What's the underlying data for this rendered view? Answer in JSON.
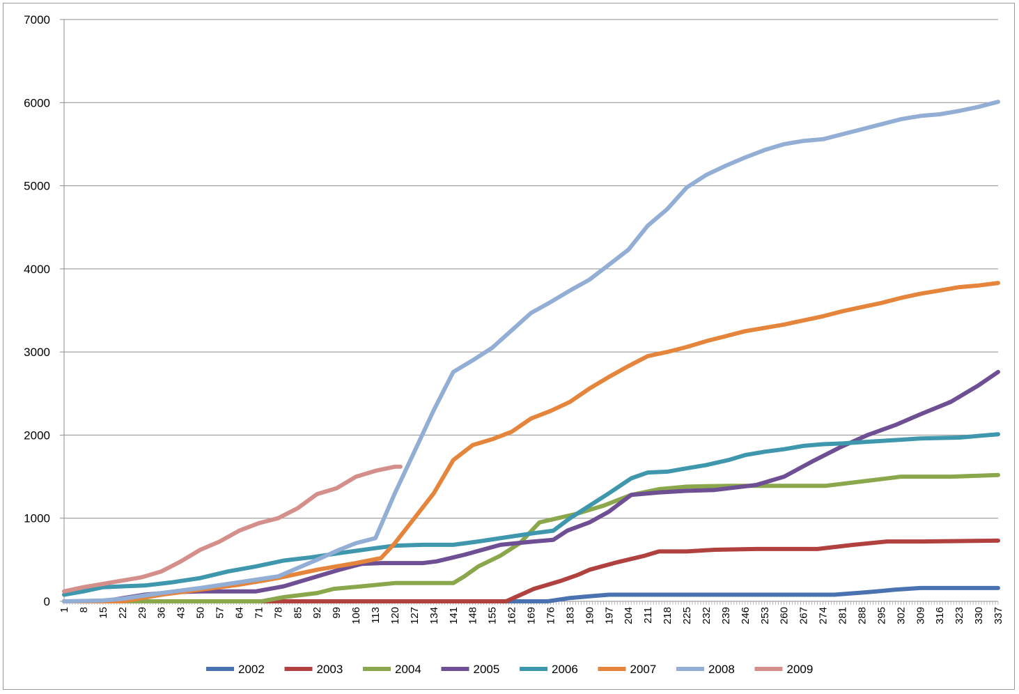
{
  "chart_data": {
    "type": "line",
    "title": "",
    "xlabel": "",
    "ylabel": "",
    "xlim": [
      1,
      337
    ],
    "ylim": [
      0,
      7000
    ],
    "y_ticks": [
      0,
      1000,
      2000,
      3000,
      4000,
      5000,
      6000,
      7000
    ],
    "x_tick_labels": [
      "1",
      "8",
      "15",
      "22",
      "29",
      "36",
      "43",
      "50",
      "57",
      "64",
      "71",
      "78",
      "85",
      "92",
      "99",
      "106",
      "113",
      "120",
      "127",
      "134",
      "141",
      "148",
      "155",
      "162",
      "169",
      "176",
      "183",
      "190",
      "197",
      "204",
      "211",
      "218",
      "225",
      "232",
      "239",
      "246",
      "253",
      "260",
      "267",
      "274",
      "281",
      "288",
      "295",
      "302",
      "309",
      "316",
      "323",
      "330",
      "337"
    ],
    "grid": "horizontal",
    "legend_position": "bottom",
    "series": [
      {
        "name": "2002",
        "color": "#4a72b0",
        "points": [
          [
            1,
            0
          ],
          [
            175,
            0
          ],
          [
            183,
            40
          ],
          [
            190,
            60
          ],
          [
            197,
            80
          ],
          [
            220,
            80
          ],
          [
            278,
            80
          ],
          [
            290,
            110
          ],
          [
            300,
            140
          ],
          [
            309,
            160
          ],
          [
            337,
            160
          ]
        ]
      },
      {
        "name": "2003",
        "color": "#b0413e",
        "points": [
          [
            1,
            0
          ],
          [
            160,
            0
          ],
          [
            170,
            150
          ],
          [
            180,
            250
          ],
          [
            186,
            320
          ],
          [
            190,
            380
          ],
          [
            200,
            470
          ],
          [
            210,
            550
          ],
          [
            215,
            600
          ],
          [
            225,
            600
          ],
          [
            235,
            620
          ],
          [
            250,
            630
          ],
          [
            262,
            630
          ],
          [
            272,
            630
          ],
          [
            285,
            680
          ],
          [
            297,
            720
          ],
          [
            310,
            720
          ],
          [
            337,
            730
          ]
        ]
      },
      {
        "name": "2004",
        "color": "#8aa74c",
        "points": [
          [
            1,
            0
          ],
          [
            72,
            0
          ],
          [
            80,
            50
          ],
          [
            92,
            100
          ],
          [
            98,
            150
          ],
          [
            108,
            180
          ],
          [
            120,
            220
          ],
          [
            130,
            220
          ],
          [
            141,
            220
          ],
          [
            145,
            300
          ],
          [
            150,
            420
          ],
          [
            158,
            550
          ],
          [
            165,
            700
          ],
          [
            172,
            950
          ],
          [
            185,
            1050
          ],
          [
            195,
            1150
          ],
          [
            205,
            1280
          ],
          [
            215,
            1350
          ],
          [
            225,
            1380
          ],
          [
            240,
            1390
          ],
          [
            262,
            1390
          ],
          [
            275,
            1390
          ],
          [
            290,
            1450
          ],
          [
            302,
            1500
          ],
          [
            320,
            1500
          ],
          [
            337,
            1520
          ]
        ]
      },
      {
        "name": "2005",
        "color": "#6f4f93",
        "points": [
          [
            1,
            0
          ],
          [
            15,
            0
          ],
          [
            30,
            80
          ],
          [
            40,
            110
          ],
          [
            50,
            120
          ],
          [
            70,
            120
          ],
          [
            80,
            180
          ],
          [
            90,
            280
          ],
          [
            100,
            380
          ],
          [
            108,
            450
          ],
          [
            115,
            460
          ],
          [
            130,
            460
          ],
          [
            135,
            480
          ],
          [
            145,
            560
          ],
          [
            158,
            680
          ],
          [
            170,
            720
          ],
          [
            177,
            740
          ],
          [
            182,
            850
          ],
          [
            190,
            950
          ],
          [
            197,
            1080
          ],
          [
            205,
            1280
          ],
          [
            215,
            1310
          ],
          [
            225,
            1330
          ],
          [
            235,
            1340
          ],
          [
            250,
            1400
          ],
          [
            260,
            1500
          ],
          [
            270,
            1680
          ],
          [
            280,
            1850
          ],
          [
            290,
            2000
          ],
          [
            300,
            2120
          ],
          [
            309,
            2250
          ],
          [
            320,
            2400
          ],
          [
            330,
            2600
          ],
          [
            337,
            2760
          ]
        ]
      },
      {
        "name": "2006",
        "color": "#3e97ad",
        "points": [
          [
            1,
            80
          ],
          [
            8,
            120
          ],
          [
            15,
            170
          ],
          [
            22,
            180
          ],
          [
            30,
            190
          ],
          [
            40,
            230
          ],
          [
            50,
            280
          ],
          [
            60,
            360
          ],
          [
            70,
            420
          ],
          [
            80,
            490
          ],
          [
            90,
            530
          ],
          [
            100,
            580
          ],
          [
            113,
            640
          ],
          [
            120,
            670
          ],
          [
            130,
            680
          ],
          [
            141,
            680
          ],
          [
            150,
            720
          ],
          [
            160,
            770
          ],
          [
            170,
            820
          ],
          [
            177,
            850
          ],
          [
            183,
            1000
          ],
          [
            190,
            1150
          ],
          [
            197,
            1300
          ],
          [
            205,
            1480
          ],
          [
            211,
            1550
          ],
          [
            218,
            1560
          ],
          [
            225,
            1600
          ],
          [
            232,
            1640
          ],
          [
            240,
            1700
          ],
          [
            246,
            1760
          ],
          [
            253,
            1800
          ],
          [
            260,
            1830
          ],
          [
            267,
            1870
          ],
          [
            274,
            1890
          ],
          [
            281,
            1900
          ],
          [
            290,
            1920
          ],
          [
            300,
            1940
          ],
          [
            309,
            1960
          ],
          [
            323,
            1970
          ],
          [
            337,
            2010
          ]
        ]
      },
      {
        "name": "2007",
        "color": "#e5843b",
        "points": [
          [
            1,
            0
          ],
          [
            22,
            0
          ],
          [
            36,
            80
          ],
          [
            50,
            140
          ],
          [
            64,
            200
          ],
          [
            78,
            280
          ],
          [
            92,
            380
          ],
          [
            106,
            460
          ],
          [
            115,
            520
          ],
          [
            120,
            700
          ],
          [
            127,
            1000
          ],
          [
            134,
            1300
          ],
          [
            141,
            1700
          ],
          [
            148,
            1880
          ],
          [
            155,
            1950
          ],
          [
            162,
            2040
          ],
          [
            169,
            2200
          ],
          [
            176,
            2290
          ],
          [
            183,
            2400
          ],
          [
            190,
            2560
          ],
          [
            197,
            2700
          ],
          [
            204,
            2830
          ],
          [
            211,
            2950
          ],
          [
            218,
            3000
          ],
          [
            225,
            3060
          ],
          [
            232,
            3130
          ],
          [
            239,
            3190
          ],
          [
            246,
            3250
          ],
          [
            253,
            3290
          ],
          [
            260,
            3330
          ],
          [
            267,
            3380
          ],
          [
            274,
            3430
          ],
          [
            281,
            3490
          ],
          [
            288,
            3540
          ],
          [
            295,
            3590
          ],
          [
            302,
            3650
          ],
          [
            309,
            3700
          ],
          [
            316,
            3740
          ],
          [
            323,
            3780
          ],
          [
            330,
            3800
          ],
          [
            337,
            3830
          ]
        ]
      },
      {
        "name": "2008",
        "color": "#93aed4",
        "points": [
          [
            1,
            0
          ],
          [
            15,
            10
          ],
          [
            22,
            30
          ],
          [
            36,
            100
          ],
          [
            50,
            160
          ],
          [
            64,
            230
          ],
          [
            78,
            300
          ],
          [
            92,
            500
          ],
          [
            100,
            620
          ],
          [
            106,
            700
          ],
          [
            113,
            760
          ],
          [
            120,
            1300
          ],
          [
            127,
            1800
          ],
          [
            134,
            2300
          ],
          [
            141,
            2760
          ],
          [
            148,
            2900
          ],
          [
            155,
            3050
          ],
          [
            162,
            3260
          ],
          [
            169,
            3470
          ],
          [
            176,
            3600
          ],
          [
            183,
            3740
          ],
          [
            190,
            3870
          ],
          [
            197,
            4050
          ],
          [
            204,
            4230
          ],
          [
            211,
            4520
          ],
          [
            218,
            4720
          ],
          [
            225,
            4980
          ],
          [
            232,
            5130
          ],
          [
            239,
            5240
          ],
          [
            246,
            5340
          ],
          [
            253,
            5430
          ],
          [
            260,
            5500
          ],
          [
            267,
            5540
          ],
          [
            274,
            5560
          ],
          [
            281,
            5620
          ],
          [
            288,
            5680
          ],
          [
            295,
            5740
          ],
          [
            302,
            5800
          ],
          [
            309,
            5840
          ],
          [
            316,
            5860
          ],
          [
            323,
            5900
          ],
          [
            330,
            5950
          ],
          [
            337,
            6010
          ]
        ]
      },
      {
        "name": "2009",
        "color": "#d48f8b",
        "points": [
          [
            1,
            120
          ],
          [
            8,
            170
          ],
          [
            15,
            210
          ],
          [
            22,
            250
          ],
          [
            29,
            290
          ],
          [
            36,
            360
          ],
          [
            43,
            480
          ],
          [
            50,
            620
          ],
          [
            57,
            720
          ],
          [
            64,
            850
          ],
          [
            71,
            940
          ],
          [
            78,
            1000
          ],
          [
            85,
            1120
          ],
          [
            92,
            1290
          ],
          [
            99,
            1360
          ],
          [
            106,
            1500
          ],
          [
            113,
            1570
          ],
          [
            120,
            1620
          ],
          [
            122,
            1620
          ]
        ]
      }
    ]
  }
}
